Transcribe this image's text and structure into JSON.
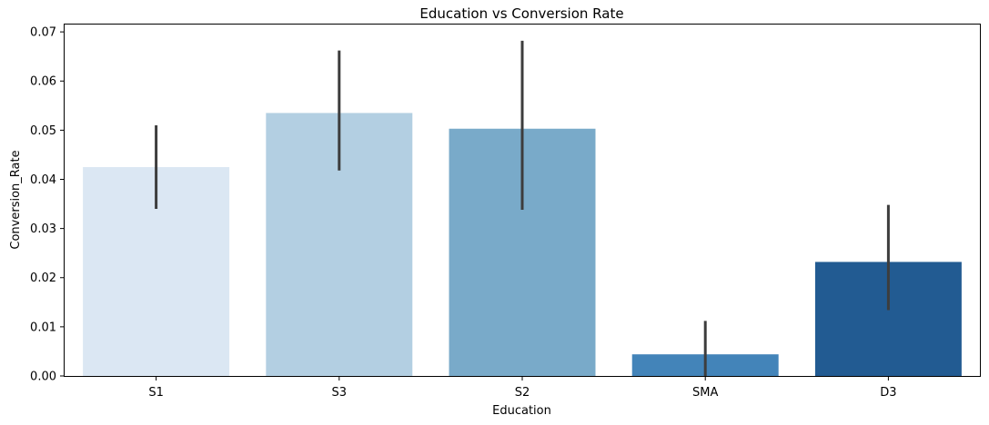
{
  "chart_data": {
    "type": "bar",
    "title": "Education vs Conversion Rate",
    "xlabel": "Education",
    "ylabel": "Conversion_Rate",
    "categories": [
      "S1",
      "S3",
      "S2",
      "SMA",
      "D3"
    ],
    "values": [
      0.0425,
      0.0535,
      0.0503,
      0.0044,
      0.0232
    ],
    "error_low": [
      0.034,
      0.0418,
      0.0338,
      0.0,
      0.0134
    ],
    "error_high": [
      0.051,
      0.0662,
      0.0682,
      0.0112,
      0.0348
    ],
    "bar_colors": [
      "#dbe7f3",
      "#b3cfe2",
      "#79aac9",
      "#4384b9",
      "#225b92"
    ],
    "error_color": "#3d3d3d",
    "ylim": [
      0,
      0.0715
    ],
    "yticks": [
      "0.00",
      "0.01",
      "0.02",
      "0.03",
      "0.04",
      "0.05",
      "0.06",
      "0.07"
    ],
    "grid": false,
    "legend": "none"
  }
}
